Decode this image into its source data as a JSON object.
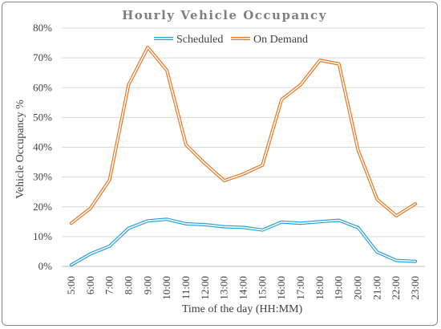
{
  "chart_data": {
    "type": "line",
    "title": "Hourly Vehicle Occupancy",
    "xlabel": "Time of the day (HH:MM)",
    "ylabel": "Vehicle Occupancy %",
    "ylim": [
      0,
      80
    ],
    "yticks": [
      "0%",
      "10%",
      "20%",
      "30%",
      "40%",
      "50%",
      "60%",
      "70%",
      "80%"
    ],
    "grid": true,
    "legend": "top-center",
    "categories": [
      "5:00",
      "6:00",
      "7:00",
      "8:00",
      "9:00",
      "10:00",
      "11:00",
      "12:00",
      "13:00",
      "14:00",
      "15:00",
      "16:00",
      "17:00",
      "18:00",
      "19:00",
      "20:00",
      "21:00",
      "22:00",
      "23:00"
    ],
    "series": [
      {
        "name": "Scheduled",
        "color": "#2aa0d8",
        "values": [
          0.5,
          4.2,
          6.8,
          12.8,
          15.3,
          15.8,
          14.3,
          14.0,
          13.3,
          13.1,
          12.2,
          14.9,
          14.5,
          15.0,
          15.5,
          13.0,
          4.8,
          2.0,
          1.7
        ]
      },
      {
        "name": "On Demand",
        "color": "#e87722",
        "values": [
          14.5,
          19.5,
          29.0,
          61.0,
          73.5,
          65.8,
          40.8,
          34.5,
          28.8,
          31.0,
          34.0,
          56.0,
          61.0,
          69.2,
          68.0,
          39.0,
          22.5,
          17.0,
          21.0
        ]
      }
    ]
  }
}
